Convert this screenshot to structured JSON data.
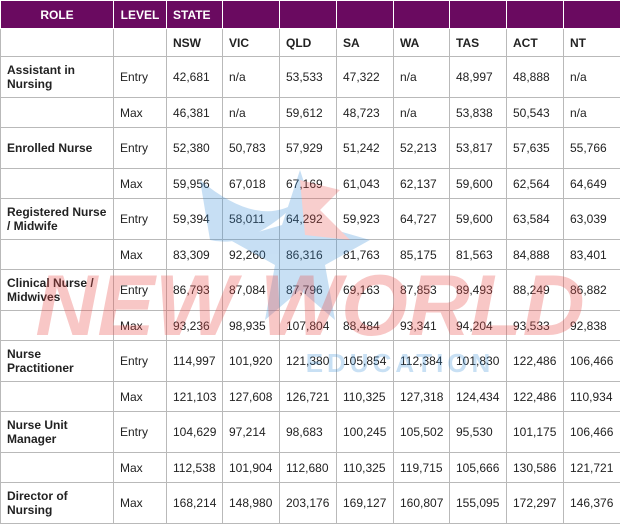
{
  "header": {
    "role": "ROLE",
    "level": "LEVEL",
    "state": "STATE"
  },
  "states": [
    "NSW",
    "VIC",
    "QLD",
    "SA",
    "WA",
    "TAS",
    "ACT",
    "NT"
  ],
  "rows": [
    {
      "role": "Assistant in Nursing",
      "entry": [
        "42,681",
        "n/a",
        "53,533",
        "47,322",
        "n/a",
        "48,997",
        "48,888",
        "n/a"
      ],
      "max": [
        "46,381",
        "n/a",
        "59,612",
        "48,723",
        "n/a",
        "53,838",
        "50,543",
        "n/a"
      ]
    },
    {
      "role": "Enrolled Nurse",
      "entry": [
        "52,380",
        "50,783",
        "57,929",
        "51,242",
        "52,213",
        "53,817",
        "57,635",
        "55,766"
      ],
      "max": [
        "59,956",
        "67,018",
        "67,169",
        "61,043",
        "62,137",
        "59,600",
        "62,564",
        "64,649"
      ]
    },
    {
      "role": "Registered Nurse / Midwife",
      "entry": [
        "59,394",
        "58,011",
        "64,292",
        "59,923",
        "64,727",
        "59,600",
        "63,584",
        "63,039"
      ],
      "max": [
        "83,309",
        "92,260",
        "86,316",
        "81,763",
        "85,175",
        "81,563",
        "84,888",
        "83,401"
      ]
    },
    {
      "role": "Clinical Nurse / Midwives",
      "entry": [
        "86,793",
        "87,084",
        "87,796",
        "69,163",
        "87,853",
        "89,493",
        "88,249",
        "86,882"
      ],
      "max": [
        "93,236",
        "98,935",
        "107,804",
        "88,484",
        "93,341",
        "94,204",
        "93,533",
        "92,838"
      ]
    },
    {
      "role": "Nurse Practitioner",
      "entry": [
        "114,997",
        "101,920",
        "121,380",
        "105,854",
        "112,384",
        "101,830",
        "122,486",
        "106,466"
      ],
      "max": [
        "121,103",
        "127,608",
        "126,721",
        "110,325",
        "127,318",
        "124,434",
        "122,486",
        "110,934"
      ]
    },
    {
      "role": "Nurse Unit Manager",
      "entry": [
        "104,629",
        "97,214",
        "98,683",
        "100,245",
        "105,502",
        "95,530",
        "101,175",
        "106,466"
      ],
      "max": [
        "112,538",
        "101,904",
        "112,680",
        "110,325",
        "119,715",
        "105,666",
        "130,586",
        "121,721"
      ]
    },
    {
      "role": "Director of Nursing",
      "max": [
        "168,214",
        "148,980",
        "203,176",
        "169,127",
        "160,807",
        "155,095",
        "172,297",
        "146,376"
      ]
    }
  ],
  "levels": {
    "entry": "Entry",
    "max": "Max"
  },
  "watermark": {
    "line1": "NEW WORLD",
    "line2": "EDUCATION",
    "color": "#e8524f",
    "accent": "#3a8fd8"
  }
}
